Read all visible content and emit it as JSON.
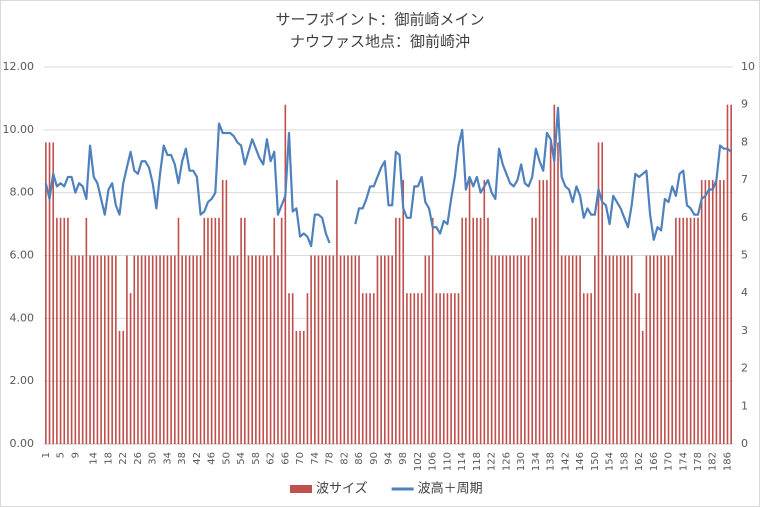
{
  "chart_data": {
    "type": "bar+line",
    "title": "サーフポイント：御前崎メイン",
    "subtitle": "ナウファス地点：御前崎沖",
    "categories": [
      1,
      null,
      null,
      null,
      5,
      null,
      null,
      null,
      9,
      null,
      null,
      null,
      null,
      14,
      null,
      null,
      null,
      18,
      null,
      null,
      null,
      22,
      null,
      null,
      null,
      26,
      null,
      null,
      null,
      30,
      null,
      null,
      null,
      34,
      null,
      null,
      null,
      38,
      null,
      null,
      null,
      42,
      null,
      null,
      null,
      46,
      null,
      null,
      null,
      50,
      null,
      null,
      null,
      54,
      null,
      null,
      null,
      58,
      null,
      null,
      null,
      62,
      null,
      null,
      null,
      66,
      null,
      null,
      null,
      70,
      null,
      null,
      null,
      74,
      null,
      null,
      null,
      78,
      null,
      null,
      null,
      82,
      null,
      null,
      null,
      86,
      null,
      null,
      null,
      90,
      null,
      null,
      null,
      94,
      null,
      null,
      null,
      98,
      null,
      null,
      null,
      102,
      null,
      null,
      null,
      106,
      null,
      null,
      null,
      110,
      null,
      null,
      null,
      114,
      null,
      null,
      null,
      118,
      null,
      null,
      null,
      122,
      null,
      null,
      null,
      126,
      null,
      null,
      null,
      130,
      null,
      null,
      null,
      134,
      null,
      null,
      null,
      138,
      null,
      null,
      null,
      142,
      null,
      null,
      null,
      146,
      null,
      null,
      null,
      150,
      null,
      null,
      null,
      154,
      null,
      null,
      null,
      158,
      null,
      null,
      null,
      162,
      null,
      null,
      null,
      166,
      null,
      null,
      null,
      170,
      null,
      null,
      null,
      174,
      null,
      null,
      null,
      178,
      null,
      null,
      null,
      182,
      null,
      null,
      null,
      186,
      null
    ],
    "series": [
      {
        "name": "波サイズ",
        "color": "#c0504d",
        "type": "bar",
        "axis": "y2",
        "values": [
          8,
          8,
          8,
          6,
          6,
          6,
          6,
          5,
          5,
          5,
          5,
          6,
          5,
          5,
          5,
          5,
          5,
          5,
          5,
          5,
          3,
          3,
          5,
          4,
          5,
          5,
          5,
          5,
          5,
          5,
          5,
          5,
          5,
          5,
          5,
          5,
          6,
          5,
          5,
          5,
          5,
          5,
          5,
          6,
          6,
          6,
          6,
          6,
          7,
          7,
          5,
          5,
          5,
          6,
          6,
          5,
          5,
          5,
          5,
          5,
          5,
          5,
          6,
          5,
          6,
          9,
          4,
          4,
          3,
          3,
          3,
          4,
          5,
          5,
          5,
          5,
          5,
          5,
          5,
          7,
          5,
          5,
          5,
          5,
          5,
          5,
          4,
          4,
          4,
          4,
          5,
          5,
          5,
          5,
          5,
          6,
          6,
          7,
          4,
          4,
          4,
          4,
          4,
          5,
          5,
          6,
          4,
          4,
          4,
          4,
          4,
          4,
          4,
          6,
          6,
          7,
          6,
          6,
          6,
          7,
          6,
          5,
          5,
          5,
          5,
          5,
          5,
          5,
          5,
          5,
          5,
          5,
          6,
          6,
          7,
          7,
          7,
          8,
          9,
          8,
          5,
          5,
          5,
          5,
          5,
          5,
          4,
          4,
          4,
          5,
          8,
          8,
          5,
          5,
          5,
          5,
          5,
          5,
          5,
          5,
          4,
          4,
          3,
          5,
          5,
          5,
          5,
          5,
          5,
          5,
          5,
          6,
          6,
          6,
          6,
          6,
          6,
          6,
          7,
          7,
          7,
          7,
          7,
          7,
          7,
          9,
          9
        ]
      },
      {
        "name": "波高＋周期",
        "color": "#4f81bd",
        "type": "line",
        "values": [
          8.3,
          7.8,
          8.6,
          8.2,
          8.3,
          8.2,
          8.5,
          8.5,
          8.0,
          8.3,
          8.2,
          7.8,
          9.5,
          8.5,
          8.3,
          7.8,
          7.3,
          8.1,
          8.3,
          7.6,
          7.3,
          8.3,
          8.8,
          9.3,
          8.7,
          8.6,
          9.0,
          9.0,
          8.8,
          8.3,
          7.5,
          8.6,
          9.5,
          9.2,
          9.2,
          8.9,
          8.3,
          9.0,
          9.4,
          8.7,
          8.7,
          8.5,
          7.3,
          7.4,
          7.7,
          7.8,
          8.0,
          10.2,
          9.9,
          9.9,
          9.9,
          9.8,
          9.6,
          9.5,
          8.9,
          9.3,
          9.7,
          9.4,
          9.1,
          8.9,
          9.7,
          9.0,
          9.3,
          7.3,
          7.6,
          7.9,
          9.9,
          7.4,
          7.5,
          6.6,
          6.7,
          6.6,
          6.3,
          7.3,
          7.3,
          7.2,
          6.7,
          6.4,
          null,
          null,
          null,
          null,
          null,
          null,
          7.0,
          7.5,
          7.5,
          7.8,
          8.2,
          8.2,
          8.5,
          8.8,
          9.0,
          7.6,
          7.6,
          9.3,
          9.2,
          7.5,
          7.2,
          7.2,
          8.2,
          8.2,
          8.5,
          7.7,
          7.5,
          6.9,
          6.9,
          6.7,
          7.1,
          7.0,
          7.8,
          8.5,
          9.5,
          10.0,
          8.1,
          8.5,
          8.2,
          8.5,
          8.0,
          8.2,
          8.4,
          8.0,
          7.8,
          9.4,
          8.9,
          8.6,
          8.3,
          8.2,
          8.4,
          8.9,
          8.3,
          8.2,
          8.5,
          9.4,
          9.0,
          8.7,
          9.9,
          9.7,
          9.0,
          10.7,
          8.5,
          8.2,
          8.1,
          7.7,
          8.2,
          7.9,
          7.2,
          7.5,
          7.3,
          7.3,
          8.1,
          7.7,
          7.6,
          7.0,
          7.9,
          7.7,
          7.5,
          7.2,
          6.9,
          7.6,
          8.6,
          8.5,
          8.6,
          8.7,
          7.3,
          6.5,
          6.9,
          6.8,
          7.8,
          7.7,
          8.2,
          7.9,
          8.6,
          8.7,
          7.6,
          7.5,
          7.3,
          7.3,
          7.8,
          7.9,
          8.1,
          8.1,
          8.4,
          9.5,
          9.4,
          9.4,
          9.3
        ]
      }
    ],
    "ylim": [
      0,
      12
    ],
    "yticks": [
      {
        "value": 0,
        "label": "0.00"
      },
      {
        "value": 2,
        "label": "2.00"
      },
      {
        "value": 4,
        "label": "4.00"
      },
      {
        "value": 6,
        "label": "6.00"
      },
      {
        "value": 8,
        "label": "8.00"
      },
      {
        "value": 10,
        "label": "10.00"
      },
      {
        "value": 12,
        "label": "12.00"
      }
    ],
    "y2lim": [
      0,
      10
    ],
    "y2ticks": [
      0,
      1,
      2,
      3,
      4,
      5,
      6,
      7,
      8,
      9,
      10
    ],
    "grid": true,
    "legend": "bottom"
  }
}
